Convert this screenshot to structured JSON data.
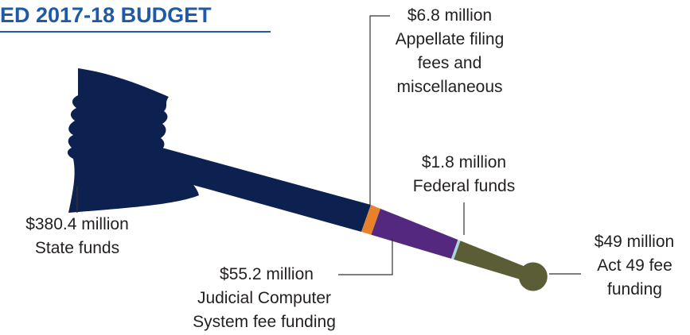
{
  "chart_data": {
    "type": "gavel",
    "title": "ED 2017-18 BUDGET",
    "categories": [
      "State funds",
      "Judicial Computer System fee funding",
      "Appellate filing fees and miscellaneous",
      "Federal funds",
      "Act 49 fee funding"
    ],
    "values": [
      380.4,
      55.2,
      6.8,
      1.8,
      49
    ],
    "value_labels": [
      "$380.4 million",
      "$55.2 million",
      "$6.8 million",
      "$1.8 million",
      "$49 million"
    ],
    "colors": [
      "#0d2150",
      "#55287f",
      "#e8822a",
      "#a9d6d8",
      "#5a5d35"
    ]
  }
}
